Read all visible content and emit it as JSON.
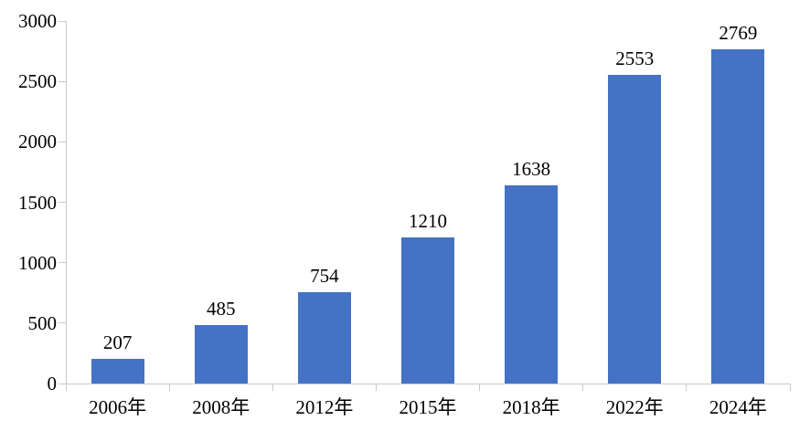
{
  "chart_data": {
    "type": "bar",
    "categories": [
      "2006年",
      "2008年",
      "2012年",
      "2015年",
      "2018年",
      "2022年",
      "2024年"
    ],
    "values": [
      207,
      485,
      754,
      1210,
      1638,
      2553,
      2769
    ],
    "yticks": [
      0,
      500,
      1000,
      1500,
      2000,
      2500,
      3000
    ],
    "ylim": [
      0,
      3000
    ],
    "grid": false,
    "legend": "none",
    "bar_color": "#4472C4",
    "axis_color": "#C9C9C9",
    "text_color": "#000000"
  }
}
